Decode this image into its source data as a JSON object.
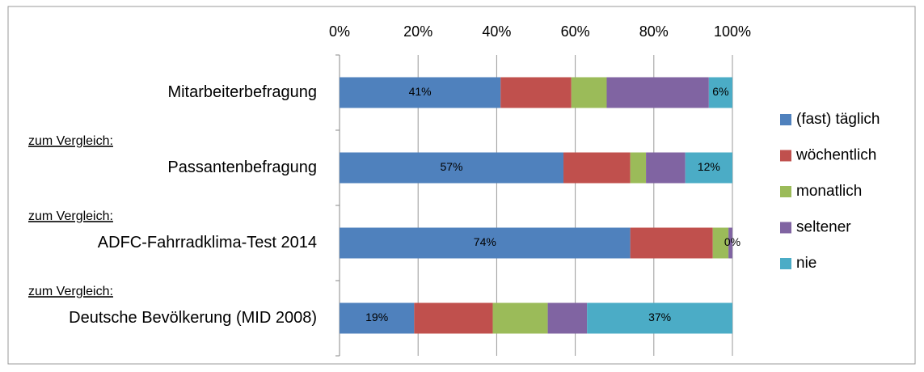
{
  "chart_data": {
    "type": "stacked-bar-horizontal",
    "categories": [
      "Mitarbeiterbefragung",
      "Passantenbefragung",
      "ADFC-Fahrradklima-Test 2014",
      "Deutsche Bevölkerung (MID 2008)"
    ],
    "annotations": [
      "zum Vergleich:",
      "zum Vergleich:",
      "zum Vergleich:"
    ],
    "series": [
      {
        "name": "(fast) täglich",
        "color": "#4f81bd",
        "values": [
          41,
          57,
          74,
          19
        ],
        "value_labels": [
          "41%",
          "57%",
          "74%",
          "19%"
        ]
      },
      {
        "name": "wöchentlich",
        "color": "#c0504d",
        "values": [
          18,
          17,
          21,
          20
        ]
      },
      {
        "name": "monatlich",
        "color": "#9bbb59",
        "values": [
          9,
          4,
          4,
          14
        ]
      },
      {
        "name": "seltener",
        "color": "#8064a2",
        "values": [
          26,
          10,
          1,
          10
        ]
      },
      {
        "name": "nie",
        "color": "#4bacc6",
        "values": [
          6,
          12,
          0,
          37
        ],
        "value_labels": [
          "6%",
          "12%",
          "0%",
          "37%"
        ]
      }
    ],
    "xlim": [
      0,
      100
    ],
    "xticks": [
      {
        "value": 0,
        "label": "0%"
      },
      {
        "value": 20,
        "label": "20%"
      },
      {
        "value": 40,
        "label": "40%"
      },
      {
        "value": 60,
        "label": "60%"
      },
      {
        "value": 80,
        "label": "80%"
      },
      {
        "value": 100,
        "label": "100%"
      }
    ],
    "grid": true,
    "legend": "right"
  }
}
